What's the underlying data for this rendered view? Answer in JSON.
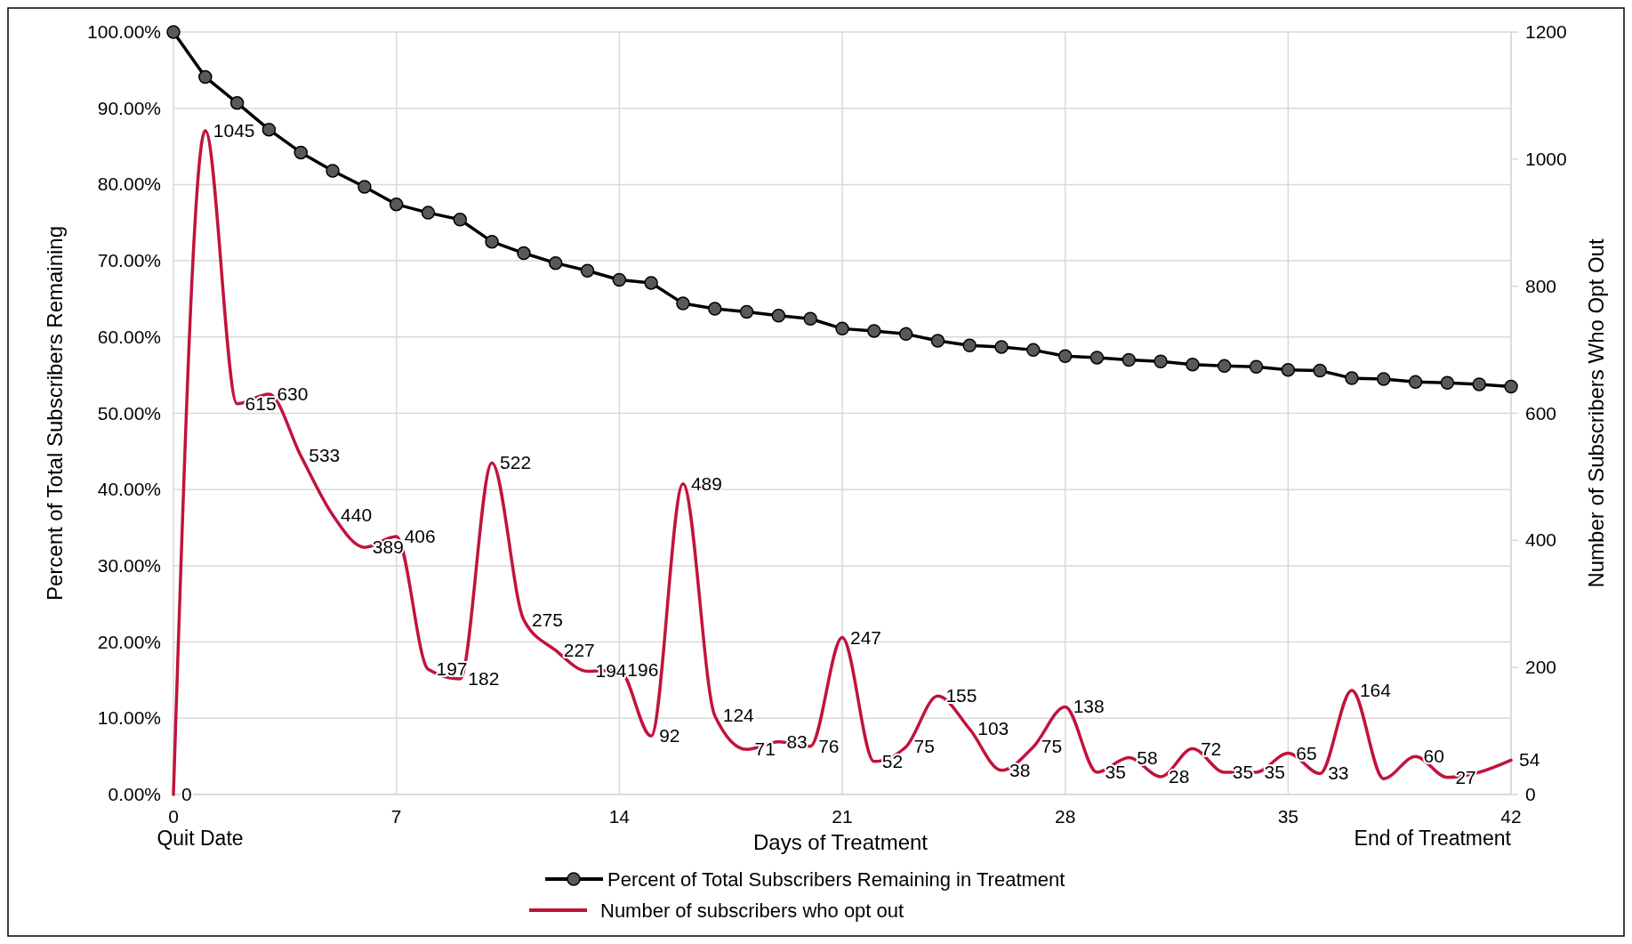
{
  "chart_data": {
    "type": "line",
    "xlabel": "Days of Treatment",
    "ylabel": "Percent of Total Subscribers Remaining",
    "y2label": "Number of Subscribers Who Opt Out",
    "x": [
      0,
      1,
      2,
      3,
      4,
      5,
      6,
      7,
      8,
      9,
      10,
      11,
      12,
      13,
      14,
      15,
      16,
      17,
      18,
      19,
      20,
      21,
      22,
      23,
      24,
      25,
      26,
      27,
      28,
      29,
      30,
      31,
      32,
      33,
      34,
      35,
      36,
      37,
      38,
      39,
      40,
      41,
      42
    ],
    "xlim": [
      0,
      42
    ],
    "xticks": [
      0,
      7,
      14,
      21,
      28,
      35,
      42
    ],
    "ylim": [
      0,
      100
    ],
    "yticks": [
      {
        "value": 0,
        "label": "0.00%"
      },
      {
        "value": 10,
        "label": "10.00%"
      },
      {
        "value": 20,
        "label": "20.00%"
      },
      {
        "value": 30,
        "label": "30.00%"
      },
      {
        "value": 40,
        "label": "40.00%"
      },
      {
        "value": 50,
        "label": "50.00%"
      },
      {
        "value": 60,
        "label": "60.00%"
      },
      {
        "value": 70,
        "label": "70.00%"
      },
      {
        "value": 80,
        "label": "80.00%"
      },
      {
        "value": 90,
        "label": "90.00%"
      },
      {
        "value": 100,
        "label": "100.00%"
      }
    ],
    "y2lim": [
      0,
      1200
    ],
    "y2ticks": [
      0,
      200,
      400,
      600,
      800,
      1000,
      1200
    ],
    "grid": true,
    "legend": "bottom",
    "annotations": [
      "Quit Date",
      "End of Treatment"
    ],
    "series": [
      {
        "name": "Percent of Total Subscribers Remaining in Treatment",
        "color": "#000000",
        "marker": "circle",
        "values": [
          100,
          94.1,
          90.7,
          87.2,
          84.2,
          81.8,
          79.7,
          77.4,
          76.3,
          75.4,
          72.5,
          71.0,
          69.7,
          68.7,
          67.5,
          67.1,
          64.4,
          63.7,
          63.3,
          62.8,
          62.4,
          61.1,
          60.8,
          60.4,
          59.5,
          58.9,
          58.7,
          58.3,
          57.5,
          57.3,
          57.0,
          56.8,
          56.4,
          56.2,
          56.1,
          55.7,
          55.6,
          54.6,
          54.5,
          54.1,
          54.0,
          53.8,
          53.5
        ]
      },
      {
        "name": "Number of subscribers who opt out",
        "color": "#c0143c",
        "marker": "none",
        "axis": "y2",
        "values": [
          0,
          1045,
          615,
          630,
          533,
          440,
          389,
          406,
          197,
          182,
          522,
          275,
          227,
          194,
          196,
          92,
          489,
          124,
          71,
          83,
          76,
          247,
          52,
          75,
          155,
          103,
          38,
          75,
          138,
          35,
          58,
          28,
          72,
          35,
          35,
          65,
          33,
          164,
          25,
          60,
          27,
          35,
          54
        ],
        "value_labels": [
          "0",
          "1045",
          "615",
          "630",
          "533",
          "440",
          "389",
          "406",
          "197",
          "182",
          "522",
          "275",
          "227",
          "194",
          "196",
          "92",
          "489",
          "124",
          "71",
          "83",
          "76",
          "247",
          "52",
          "75",
          "155",
          "103",
          "38",
          "75",
          "138",
          "35",
          "58",
          "28",
          "72",
          "35",
          "35",
          "65",
          "33",
          "164",
          null,
          "60",
          "27",
          null,
          "54"
        ]
      }
    ]
  }
}
